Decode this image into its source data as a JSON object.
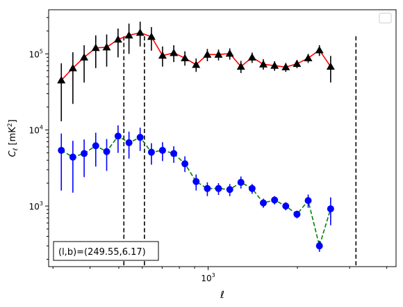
{
  "chart_data": {
    "type": "scatter",
    "xlabel": "ℓ",
    "ylabel_parts": [
      "C",
      "ℓ",
      "  [mK",
      "2",
      "]"
    ],
    "xscale": "log",
    "yscale": "log",
    "xlim": [
      290,
      4300
    ],
    "ylim": [
      160,
      380000
    ],
    "x_tick_labels": [
      {
        "base": "10",
        "exp": "3",
        "value": 1000
      }
    ],
    "y_tick_labels": [
      {
        "base": "10",
        "exp": "3",
        "value": 1000
      },
      {
        "base": "10",
        "exp": "4",
        "value": 10000
      },
      {
        "base": "10",
        "exp": "5",
        "value": 100000
      }
    ],
    "vlines": [
      520,
      610,
      3150
    ],
    "legend": "top-right",
    "annotation": "(l,b)=(249.55,6.17)",
    "series": [
      {
        "color": "#ff0000",
        "marker": "triangle",
        "marker_color": "#000000",
        "errcolor": "#000000",
        "linestyle": "solid",
        "points": [
          {
            "x": 320,
            "y": 45000,
            "lo": 13000,
            "hi": 75000
          },
          {
            "x": 350,
            "y": 65000,
            "lo": 22000,
            "hi": 105000
          },
          {
            "x": 382,
            "y": 90000,
            "lo": 42000,
            "hi": 130000
          },
          {
            "x": 418,
            "y": 120000,
            "lo": 65000,
            "hi": 175000
          },
          {
            "x": 455,
            "y": 122000,
            "lo": 68000,
            "hi": 180000
          },
          {
            "x": 497,
            "y": 155000,
            "lo": 90000,
            "hi": 215000
          },
          {
            "x": 541,
            "y": 175000,
            "lo": 100000,
            "hi": 250000
          },
          {
            "x": 590,
            "y": 190000,
            "lo": 125000,
            "hi": 265000
          },
          {
            "x": 644,
            "y": 168000,
            "lo": 110000,
            "hi": 225000
          },
          {
            "x": 702,
            "y": 95000,
            "lo": 68000,
            "hi": 125000
          },
          {
            "x": 766,
            "y": 103000,
            "lo": 78000,
            "hi": 130000
          },
          {
            "x": 835,
            "y": 88000,
            "lo": 70000,
            "hi": 108000
          },
          {
            "x": 911,
            "y": 72000,
            "lo": 58000,
            "hi": 87000
          },
          {
            "x": 994,
            "y": 98000,
            "lo": 80000,
            "hi": 116000
          },
          {
            "x": 1084,
            "y": 98000,
            "lo": 82000,
            "hi": 114000
          },
          {
            "x": 1183,
            "y": 101000,
            "lo": 84000,
            "hi": 118000
          },
          {
            "x": 1290,
            "y": 68000,
            "lo": 56000,
            "hi": 81000
          },
          {
            "x": 1407,
            "y": 90000,
            "lo": 76000,
            "hi": 104000
          },
          {
            "x": 1535,
            "y": 73000,
            "lo": 62000,
            "hi": 85000
          },
          {
            "x": 1675,
            "y": 70000,
            "lo": 60000,
            "hi": 80000
          },
          {
            "x": 1827,
            "y": 67000,
            "lo": 58000,
            "hi": 76000
          },
          {
            "x": 1993,
            "y": 74000,
            "lo": 65000,
            "hi": 83000
          },
          {
            "x": 2174,
            "y": 88000,
            "lo": 76000,
            "hi": 100000
          },
          {
            "x": 2372,
            "y": 112000,
            "lo": 94000,
            "hi": 130000
          },
          {
            "x": 2588,
            "y": 68000,
            "lo": 42000,
            "hi": 94000
          }
        ]
      },
      {
        "color": "#008000",
        "marker": "circle",
        "marker_color": "#0000ff",
        "errcolor": "#0000ff",
        "linestyle": "dashed",
        "points": [
          {
            "x": 320,
            "y": 5400,
            "lo": 1600,
            "hi": 9000
          },
          {
            "x": 350,
            "y": 4400,
            "lo": 1500,
            "hi": 7200
          },
          {
            "x": 382,
            "y": 4900,
            "lo": 2400,
            "hi": 7500
          },
          {
            "x": 418,
            "y": 6200,
            "lo": 3300,
            "hi": 9200
          },
          {
            "x": 455,
            "y": 5200,
            "lo": 2900,
            "hi": 7600
          },
          {
            "x": 497,
            "y": 8300,
            "lo": 5000,
            "hi": 11500
          },
          {
            "x": 541,
            "y": 6800,
            "lo": 4200,
            "hi": 9500
          },
          {
            "x": 590,
            "y": 8000,
            "lo": 5300,
            "hi": 10700
          },
          {
            "x": 644,
            "y": 5100,
            "lo": 3500,
            "hi": 6700
          },
          {
            "x": 702,
            "y": 5400,
            "lo": 3900,
            "hi": 6900
          },
          {
            "x": 766,
            "y": 4900,
            "lo": 3700,
            "hi": 6100
          },
          {
            "x": 835,
            "y": 3600,
            "lo": 2800,
            "hi": 4500
          },
          {
            "x": 911,
            "y": 2100,
            "lo": 1600,
            "hi": 2600
          },
          {
            "x": 994,
            "y": 1700,
            "lo": 1350,
            "hi": 2050
          },
          {
            "x": 1084,
            "y": 1700,
            "lo": 1400,
            "hi": 2000
          },
          {
            "x": 1183,
            "y": 1650,
            "lo": 1350,
            "hi": 1950
          },
          {
            "x": 1290,
            "y": 2050,
            "lo": 1700,
            "hi": 2450
          },
          {
            "x": 1407,
            "y": 1700,
            "lo": 1450,
            "hi": 1950
          },
          {
            "x": 1535,
            "y": 1100,
            "lo": 950,
            "hi": 1250
          },
          {
            "x": 1675,
            "y": 1200,
            "lo": 1050,
            "hi": 1350
          },
          {
            "x": 1827,
            "y": 1000,
            "lo": 880,
            "hi": 1120
          },
          {
            "x": 1993,
            "y": 780,
            "lo": 690,
            "hi": 870
          },
          {
            "x": 2174,
            "y": 1180,
            "lo": 950,
            "hi": 1420
          },
          {
            "x": 2372,
            "y": 300,
            "lo": 250,
            "hi": 350
          },
          {
            "x": 2588,
            "y": 920,
            "lo": 560,
            "hi": 1300
          }
        ]
      }
    ]
  }
}
